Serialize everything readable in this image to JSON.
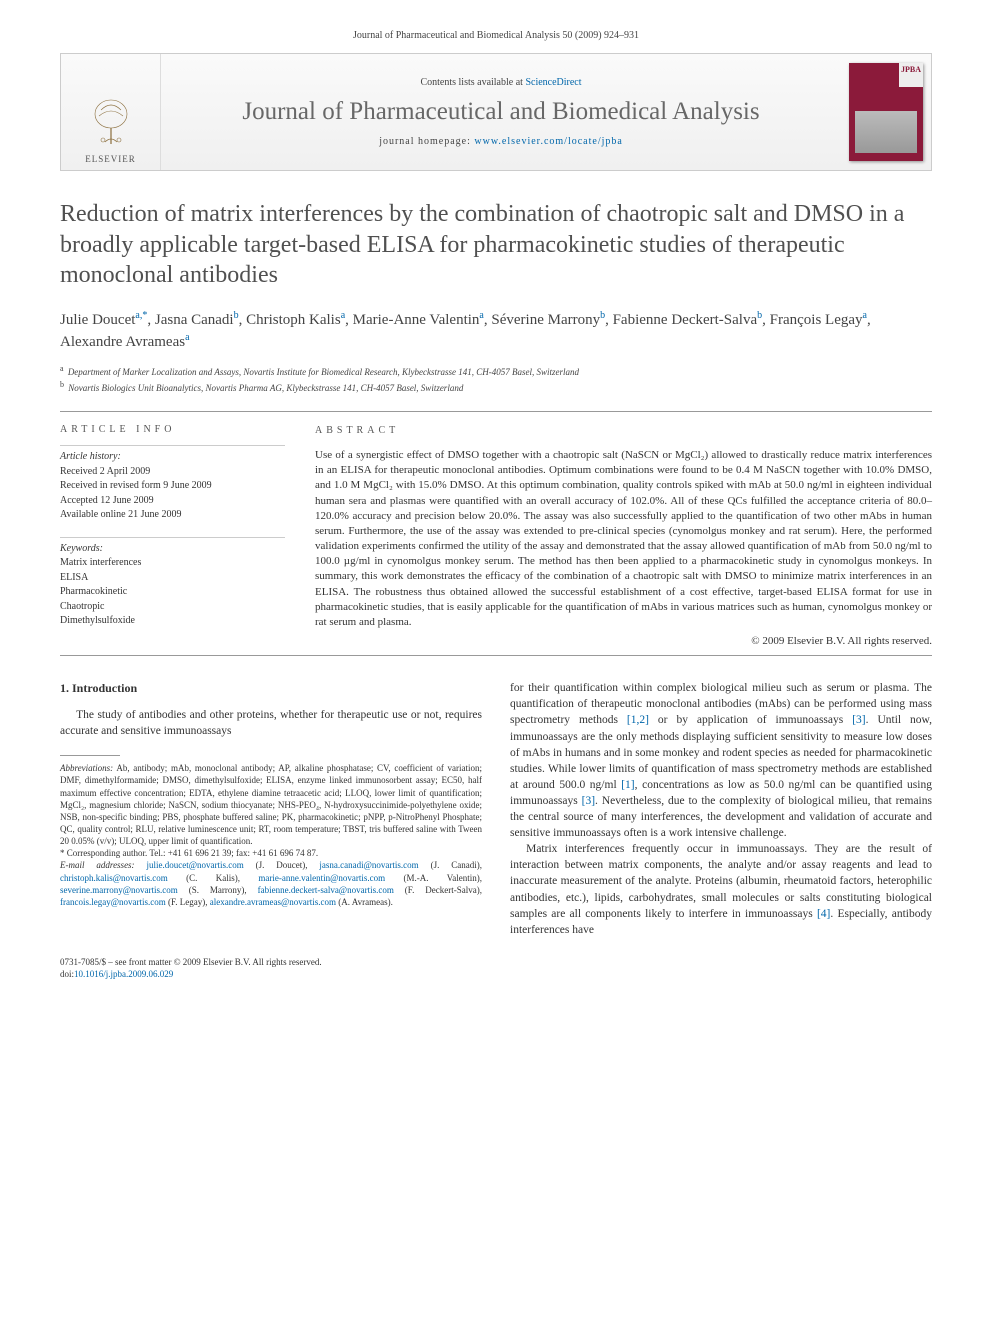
{
  "page_header": "Journal of Pharmaceutical and Biomedical Analysis 50 (2009) 924–931",
  "masthead": {
    "publisher": "ELSEVIER",
    "contents_prefix": "Contents lists available at ",
    "contents_link": "ScienceDirect",
    "journal": "Journal of Pharmaceutical and Biomedical Analysis",
    "homepage_prefix": "journal homepage: ",
    "homepage_link": "www.elsevier.com/locate/jpba",
    "cover_tag": "JPBA"
  },
  "title": "Reduction of matrix interferences by the combination of chaotropic salt and DMSO in a broadly applicable target-based ELISA for pharmacokinetic studies of therapeutic monoclonal antibodies",
  "authors_html": "Julie Doucet<sup>a,*</sup>, Jasna Canadi<sup>b</sup>, Christoph Kalis<sup>a</sup>, Marie-Anne Valentin<sup>a</sup>, Séverine Marrony<sup>b</sup>, Fabienne Deckert-Salva<sup>b</sup>, François Legay<sup>a</sup>, Alexandre Avrameas<sup>a</sup>",
  "affiliations": {
    "a": "Department of Marker Localization and Assays, Novartis Institute for Biomedical Research, Klybeckstrasse 141, CH-4057 Basel, Switzerland",
    "b": "Novartis Biologics Unit Bioanalytics, Novartis Pharma AG, Klybeckstrasse 141, CH-4057 Basel, Switzerland"
  },
  "info": {
    "head": "article info",
    "history_label": "Article history:",
    "received": "Received 2 April 2009",
    "revised": "Received in revised form 9 June 2009",
    "accepted": "Accepted 12 June 2009",
    "online": "Available online 21 June 2009",
    "keywords_label": "Keywords:",
    "keywords": [
      "Matrix interferences",
      "ELISA",
      "Pharmacokinetic",
      "Chaotropic",
      "Dimethylsulfoxide"
    ]
  },
  "abstract": {
    "head": "abstract",
    "text": "Use of a synergistic effect of DMSO together with a chaotropic salt (NaSCN or MgCl₂) allowed to drastically reduce matrix interferences in an ELISA for therapeutic monoclonal antibodies. Optimum combinations were found to be 0.4 M NaSCN together with 10.0% DMSO, and 1.0 M MgCl₂ with 15.0% DMSO. At this optimum combination, quality controls spiked with mAb at 50.0 ng/ml in eighteen individual human sera and plasmas were quantified with an overall accuracy of 102.0%. All of these QCs fulfilled the acceptance criteria of 80.0–120.0% accuracy and precision below 20.0%. The assay was also successfully applied to the quantification of two other mAbs in human serum. Furthermore, the use of the assay was extended to pre-clinical species (cynomolgus monkey and rat serum). Here, the performed validation experiments confirmed the utility of the assay and demonstrated that the assay allowed quantification of mAb from 50.0 ng/ml to 100.0 µg/ml in cynomolgus monkey serum. The method has then been applied to a pharmacokinetic study in cynomolgus monkeys. In summary, this work demonstrates the efficacy of the combination of a chaotropic salt with DMSO to minimize matrix interferences in an ELISA. The robustness thus obtained allowed the successful establishment of a cost effective, target-based ELISA format for use in pharmacokinetic studies, that is easily applicable for the quantification of mAbs in various matrices such as human, cynomolgus monkey or rat serum and plasma.",
    "copyright": "© 2009 Elsevier B.V. All rights reserved."
  },
  "intro": {
    "heading": "1. Introduction",
    "p1": "The study of antibodies and other proteins, whether for therapeutic use or not, requires accurate and sensitive immunoassays",
    "p2_a": "for their quantification within complex biological milieu such as serum or plasma. The quantification of therapeutic monoclonal antibodies (mAbs) can be performed using mass spectrometry methods ",
    "p2_link1": "[1,2]",
    "p2_b": " or by application of immunoassays ",
    "p2_link2": "[3]",
    "p2_c": ". Until now, immunoassays are the only methods displaying sufficient sensitivity to measure low doses of mAbs in humans and in some monkey and rodent species as needed for pharmacokinetic studies. While lower limits of quantification of mass spectrometry methods are established at around 500.0 ng/ml ",
    "p2_link3": "[1]",
    "p2_d": ", concentrations as low as 50.0 ng/ml can be quantified using immunoassays ",
    "p2_link4": "[3]",
    "p2_e": ". Nevertheless, due to the complexity of biological milieu, that remains the central source of many interferences, the development and validation of accurate and sensitive immunoassays often is a work intensive challenge.",
    "p3_a": "Matrix interferences frequently occur in immunoassays. They are the result of interaction between matrix components, the analyte and/or assay reagents and lead to inaccurate measurement of the analyte. Proteins (albumin, rheumatoid factors, heterophilic antibodies, etc.), lipids, carbohydrates, small molecules or salts constituting biological samples are all components likely to interfere in immunoassays ",
    "p3_link1": "[4]",
    "p3_b": ". Especially, antibody interferences have"
  },
  "footnotes": {
    "abbrev_label": "Abbreviations:",
    "abbrev": " Ab, antibody; mAb, monoclonal antibody; AP, alkaline phosphatase; CV, coefficient of variation; DMF, dimethylformamide; DMSO, dimethylsulfoxide; ELISA, enzyme linked immunosorbent assay; EC50, half maximum effective concentration; EDTA, ethylene diamine tetraacetic acid; LLOQ, lower limit of quantification; MgCl₂, magnesium chloride; NaSCN, sodium thiocyanate; NHS-PEO₄, N-hydroxysuccinimide-polyethylene oxide; NSB, non-specific binding; PBS, phosphate buffered saline; PK, pharmacokinetic; pNPP, p-NitroPhenyl Phosphate; QC, quality control; RLU, relative luminescence unit; RT, room temperature; TBST, tris buffered saline with Tween 20 0.05% (v/v); ULOQ, upper limit of quantification.",
    "corr": "* Corresponding author. Tel.: +41 61 696 21 39; fax: +41 61 696 74 87.",
    "email_label": "E-mail addresses: ",
    "emails": [
      {
        "addr": "julie.doucet@novartis.com",
        "who": " (J. Doucet), "
      },
      {
        "addr": "jasna.canadi@novartis.com",
        "who": " (J. Canadi), "
      },
      {
        "addr": "christoph.kalis@novartis.com",
        "who": " (C. Kalis), "
      },
      {
        "addr": "marie-anne.valentin@novartis.com",
        "who": " (M.-A. Valentin), "
      },
      {
        "addr": "severine.marrony@novartis.com",
        "who": " (S. Marrony), "
      },
      {
        "addr": "fabienne.deckert-salva@novartis.com",
        "who": " (F. Deckert-Salva), "
      },
      {
        "addr": "francois.legay@novartis.com",
        "who": " (F. Legay), "
      },
      {
        "addr": "alexandre.avrameas@novartis.com",
        "who": " (A. Avrameas)."
      }
    ]
  },
  "footer": {
    "line1": "0731-7085/$ – see front matter © 2009 Elsevier B.V. All rights reserved.",
    "doi_prefix": "doi:",
    "doi": "10.1016/j.jpba.2009.06.029"
  },
  "colors": {
    "link": "#0066aa",
    "cover": "#8b1a3a",
    "text": "#333333",
    "title_gray": "#505050"
  }
}
